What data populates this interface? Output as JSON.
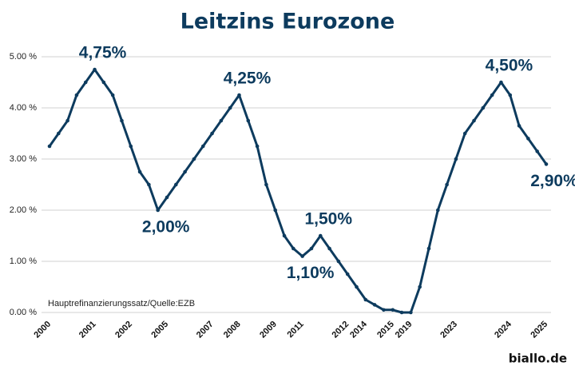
{
  "chart_data": {
    "type": "line",
    "title": "Leitzins Eurozone",
    "categories": [
      "2000",
      null,
      null,
      null,
      null,
      "2001",
      null,
      null,
      null,
      "2002",
      null,
      null,
      null,
      "2005",
      null,
      null,
      null,
      null,
      "2007",
      null,
      null,
      "2008",
      null,
      null,
      null,
      "2009",
      null,
      null,
      "2011",
      null,
      null,
      null,
      null,
      "2012",
      null,
      "2014",
      null,
      null,
      "2015",
      null,
      "2019",
      null,
      null,
      null,
      null,
      "2023",
      null,
      null,
      null,
      null,
      null,
      "2024",
      null,
      null,
      null,
      "2025"
    ],
    "series": [
      {
        "name": "Hauptrefinanzierungssatz",
        "color": "#0d3b5e",
        "values": [
          3.25,
          3.5,
          3.75,
          4.25,
          4.5,
          4.75,
          4.5,
          4.25,
          3.75,
          3.25,
          2.75,
          2.5,
          2.0,
          2.25,
          2.5,
          2.75,
          3.0,
          3.25,
          3.5,
          3.75,
          4.0,
          4.25,
          3.75,
          3.25,
          2.5,
          2.0,
          1.5,
          1.25,
          1.1,
          1.25,
          1.5,
          1.25,
          1.0,
          0.75,
          0.5,
          0.25,
          0.15,
          0.05,
          0.05,
          0.0,
          0.0,
          0.5,
          1.25,
          2.0,
          2.5,
          3.0,
          3.5,
          3.75,
          4.0,
          4.25,
          4.5,
          4.25,
          3.65,
          3.4,
          3.15,
          2.9
        ],
        "value_labels": [
          null,
          null,
          null,
          null,
          null,
          "4,75%",
          null,
          null,
          null,
          null,
          null,
          null,
          "2,00%",
          null,
          null,
          null,
          null,
          null,
          null,
          null,
          null,
          "4,25%",
          null,
          null,
          null,
          null,
          null,
          null,
          "1,10%",
          null,
          "1,50%",
          null,
          null,
          null,
          null,
          null,
          null,
          null,
          null,
          null,
          null,
          null,
          null,
          null,
          null,
          null,
          null,
          null,
          null,
          null,
          "4,50%",
          null,
          null,
          null,
          null,
          "2,90%"
        ]
      }
    ],
    "ylim": [
      0,
      5
    ],
    "yticks": [
      {
        "value": 0,
        "label": "0.00 %"
      },
      {
        "value": 1,
        "label": "1.00 %"
      },
      {
        "value": 2,
        "label": "2.00 %"
      },
      {
        "value": 3,
        "label": "3.00 %"
      },
      {
        "value": 4,
        "label": "4.00 %"
      },
      {
        "value": 5,
        "label": "5.00 %"
      }
    ],
    "grid": true,
    "source": "Hauptrefinanzierungssatz/Quelle:EZB",
    "logo": "biallo.de"
  }
}
